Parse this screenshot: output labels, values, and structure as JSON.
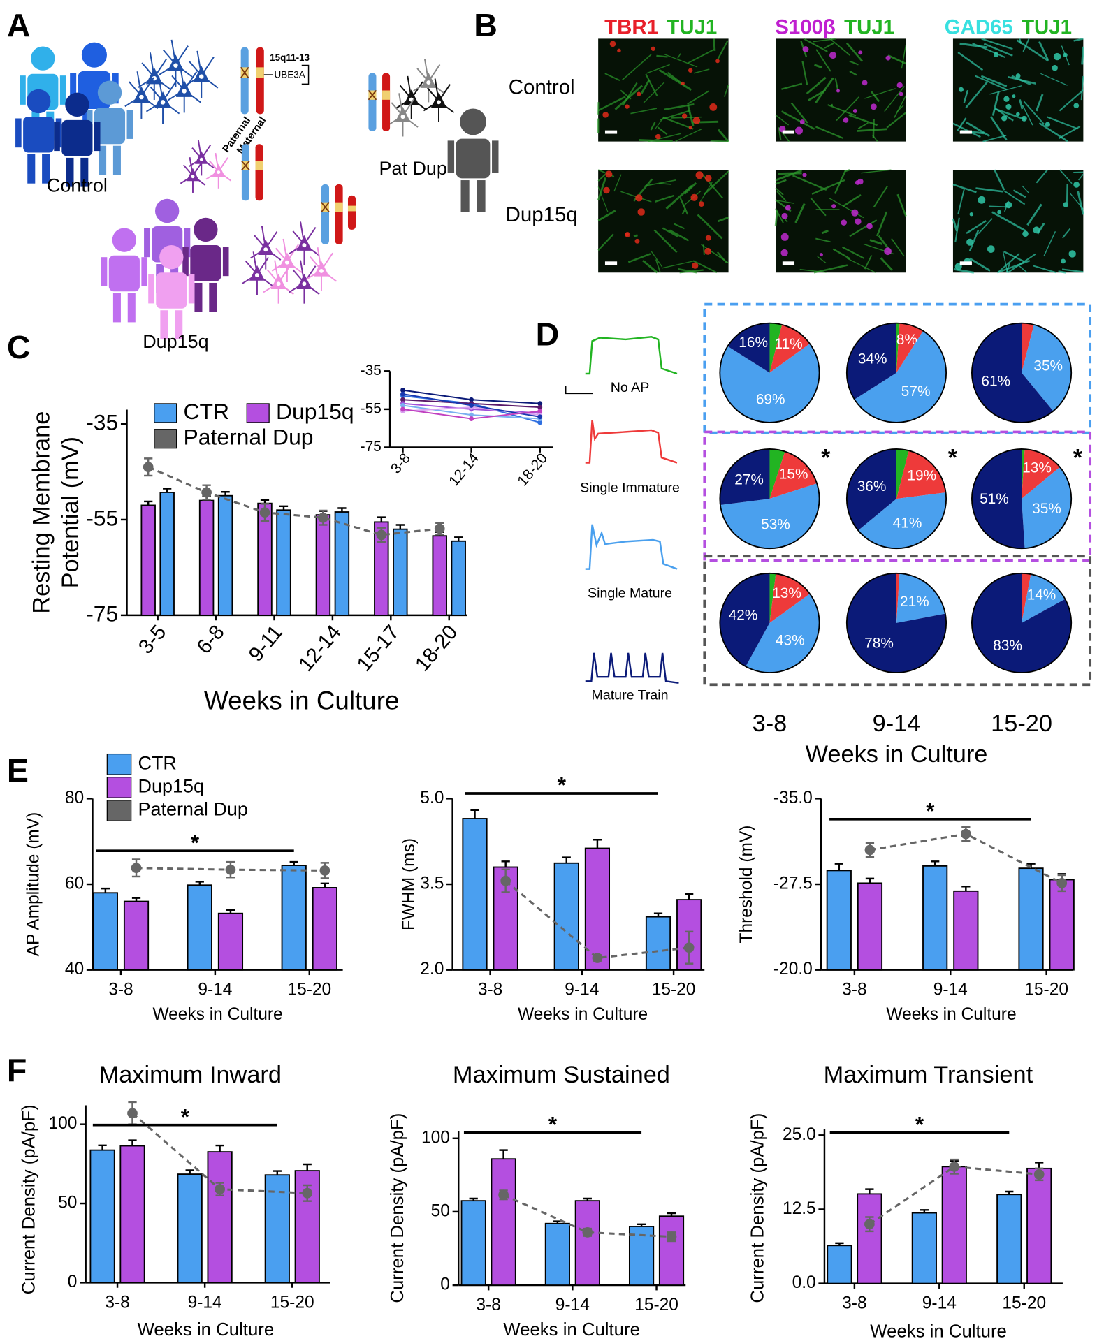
{
  "panel_labels": [
    "A",
    "B",
    "C",
    "D",
    "E",
    "F"
  ],
  "panel_a": {
    "groups": [
      "Control",
      "Pat Dup",
      "Dup15q"
    ],
    "chromosome": {
      "region": "15q11-13",
      "gene": "UBE3A",
      "alleles": [
        "Paternal",
        "Maternal"
      ]
    }
  },
  "panel_b": {
    "stains": [
      [
        "TBR1",
        "TUJ1"
      ],
      [
        "S100β",
        "TUJ1"
      ],
      [
        "GAD65",
        "TUJ1"
      ]
    ],
    "stain_colors": [
      [
        "#e8202a",
        "#22b422"
      ],
      [
        "#c020d0",
        "#22b422"
      ],
      [
        "#38e0e0",
        "#22b422"
      ]
    ],
    "rows": [
      "Control",
      "Dup15q"
    ]
  },
  "chart_data": [
    {
      "type": "bar",
      "ylabel": [
        "Resting Membrane",
        "Potential (mV)"
      ],
      "xlabel": "Weeks in Culture",
      "categories": [
        "3-5",
        "6-8",
        "9-11",
        "12-14",
        "15-17",
        "18-20"
      ],
      "series": [
        {
          "name": "CTR",
          "color": "#4a9ff0",
          "values": [
            -49.3,
            -50,
            -53,
            -53.4,
            -57,
            -59.5
          ],
          "errors": [
            0.8,
            0.8,
            0.8,
            0.8,
            0.9,
            0.8
          ]
        },
        {
          "name": "Dup15q",
          "color": "#b44fe0",
          "values": [
            -52,
            -51,
            -51.6,
            -54,
            -55.5,
            -58.4
          ],
          "errors": [
            0.8,
            0.9,
            0.7,
            0.8,
            1,
            0.8
          ]
        },
        {
          "name": "Paternal Dup",
          "color": "#666666",
          "style": "line",
          "values": [
            -44,
            -49.3,
            -53.5,
            -54.6,
            -58.2,
            -56.9
          ],
          "errors": [
            1.8,
            1.5,
            1.8,
            1.5,
            1.5,
            1.2
          ]
        }
      ],
      "bar_order": [
        1,
        0
      ],
      "ylim": [
        -75,
        -32
      ],
      "yticks": [
        -75,
        -55,
        -35
      ],
      "legend": true
    },
    {
      "type": "line",
      "categories": [
        "3-8",
        "12-14",
        "18-20"
      ],
      "ylim": [
        -75,
        -35
      ],
      "yticks": [
        -75,
        -55,
        -35
      ],
      "series": [
        {
          "color": "#0b1a78",
          "values": [
            -45,
            -50,
            -52
          ]
        },
        {
          "color": "#2f6fe0",
          "values": [
            -48,
            -52,
            -62
          ]
        },
        {
          "color": "#5a1a6a",
          "values": [
            -50,
            -52,
            -54
          ]
        },
        {
          "color": "#a050d8",
          "values": [
            -52,
            -55,
            -57
          ]
        },
        {
          "color": "#7ab0f0",
          "values": [
            -53,
            -58,
            -60
          ]
        },
        {
          "color": "#d8a0f0",
          "values": [
            -56,
            -54,
            -58
          ]
        },
        {
          "color": "#1838b0",
          "values": [
            -47,
            -53,
            -59
          ]
        },
        {
          "color": "#c040c0",
          "values": [
            -55,
            -60,
            -56
          ]
        }
      ]
    },
    {
      "type": "pie",
      "categories": [
        "No AP",
        "Single Immature",
        "Single Mature",
        "Mature Train"
      ],
      "colors": [
        "#22b422",
        "#ee3a3a",
        "#4aa0ee",
        "#0b1a78"
      ],
      "columns": [
        "3-8",
        "9-14",
        "15-20"
      ],
      "row_colors": [
        "#4a9ff0",
        "#b44fe0",
        "#555555"
      ],
      "xlabel": "Weeks in Culture",
      "pies": [
        {
          "values": [
            4,
            11,
            69,
            16
          ],
          "value_labels": [
            null,
            "11%",
            "69%",
            "16%"
          ]
        },
        {
          "values": [
            1,
            8,
            57,
            34
          ],
          "value_labels": [
            null,
            "8%",
            "57%",
            "34%"
          ]
        },
        {
          "values": [
            0,
            4,
            35,
            61
          ],
          "value_labels": [
            null,
            null,
            "35%",
            "61%"
          ]
        },
        {
          "values": [
            5,
            15,
            53,
            27
          ],
          "value_labels": [
            null,
            "15%",
            "53%",
            "27%"
          ],
          "note": "*"
        },
        {
          "values": [
            4,
            19,
            41,
            36
          ],
          "value_labels": [
            null,
            "19%",
            "41%",
            "36%"
          ],
          "note": "*"
        },
        {
          "values": [
            1,
            13,
            35,
            51
          ],
          "value_labels": [
            null,
            "13%",
            "35%",
            "51%"
          ],
          "note": "*"
        },
        {
          "values": [
            2,
            13,
            43,
            42
          ],
          "value_labels": [
            null,
            "13%",
            "43%",
            "42%"
          ]
        },
        {
          "values": [
            0,
            1,
            21,
            78
          ],
          "value_labels": [
            null,
            null,
            "21%",
            "78%"
          ]
        },
        {
          "values": [
            0,
            3,
            14,
            83
          ],
          "value_labels": [
            null,
            null,
            "14%",
            "83%"
          ]
        }
      ]
    },
    {
      "type": "bar",
      "ylabel": "AP Amplitude (mV)",
      "xlabel": "Weeks in Culture",
      "categories": [
        "3-8",
        "9-14",
        "15-20"
      ],
      "ylim": [
        40,
        80
      ],
      "yticks": [
        40,
        60,
        80
      ],
      "legend": true,
      "series": [
        {
          "name": "CTR",
          "color": "#4a9ff0",
          "values": [
            58,
            59.8,
            64.4
          ],
          "errors": [
            1,
            0.8,
            0.8
          ]
        },
        {
          "name": "Dup15q",
          "color": "#b44fe0",
          "values": [
            56,
            53.2,
            59.2
          ],
          "errors": [
            0.8,
            0.8,
            1
          ]
        },
        {
          "name": "Paternal Dup",
          "color": "#666666",
          "style": "line",
          "values": [
            63.8,
            63.4,
            63.2
          ],
          "errors": [
            2,
            1.8,
            1.8
          ]
        }
      ],
      "significance": {
        "text": "*",
        "from": 0,
        "to": 2
      }
    },
    {
      "type": "bar",
      "ylabel": "FWHM (ms)",
      "xlabel": "Weeks in Culture",
      "categories": [
        "3-8",
        "9-14",
        "15-20"
      ],
      "ylim": [
        2,
        5
      ],
      "yticks": [
        {
          "value": 2,
          "label": "2.0"
        },
        3.5,
        {
          "value": 5,
          "label": "5.0"
        }
      ],
      "series": [
        {
          "name": "CTR",
          "color": "#4a9ff0",
          "values": [
            4.65,
            3.87,
            2.93
          ],
          "errors": [
            0.15,
            0.1,
            0.06
          ]
        },
        {
          "name": "Dup15q",
          "color": "#b44fe0",
          "values": [
            3.8,
            4.13,
            3.23
          ],
          "errors": [
            0.1,
            0.15,
            0.1
          ]
        },
        {
          "name": "Paternal Dup",
          "color": "#666666",
          "style": "line",
          "values": [
            3.56,
            2.21,
            2.39
          ],
          "errors": [
            0.2,
            0.05,
            0.28
          ]
        }
      ],
      "significance": {
        "text": "*",
        "from": 0,
        "to": 2
      }
    },
    {
      "type": "bar",
      "ylabel": "Threshold (mV)",
      "xlabel": "Weeks in Culture",
      "categories": [
        "3-8",
        "9-14",
        "15-20"
      ],
      "ylim": [
        -20,
        -35
      ],
      "yticks": [
        {
          "value": -35,
          "label": "-35.0"
        },
        -27.5,
        {
          "value": -20,
          "label": "-20.0"
        }
      ],
      "series": [
        {
          "name": "CTR",
          "color": "#4a9ff0",
          "values": [
            -28.7,
            -29.1,
            -28.9
          ],
          "errors": [
            0.6,
            0.4,
            0.4
          ]
        },
        {
          "name": "Dup15q",
          "color": "#b44fe0",
          "values": [
            -27.6,
            -26.9,
            -27.9
          ],
          "errors": [
            0.4,
            0.4,
            0.5
          ]
        },
        {
          "name": "Paternal Dup",
          "color": "#666666",
          "style": "line",
          "values": [
            -30.5,
            -31.9,
            -27.6
          ],
          "errors": [
            0.6,
            0.6,
            0.7
          ]
        }
      ],
      "significance": {
        "text": "*",
        "from": 0,
        "to": 2
      }
    },
    {
      "type": "bar",
      "title": "Maximum Inward",
      "ylabel": "Current Density (pA/pF)",
      "xlabel": "Weeks in Culture",
      "categories": [
        "3-8",
        "9-14",
        "15-20"
      ],
      "ylim": [
        0,
        112
      ],
      "yticks": [
        0,
        50,
        100
      ],
      "series": [
        {
          "name": "CTR",
          "color": "#4a9ff0",
          "values": [
            83.7,
            68.5,
            68
          ],
          "errors": [
            3,
            2.5,
            2.5
          ]
        },
        {
          "name": "Dup15q",
          "color": "#b44fe0",
          "values": [
            86.4,
            82.6,
            70.7
          ],
          "errors": [
            3.5,
            4,
            4
          ]
        },
        {
          "name": "Paternal Dup",
          "color": "#666666",
          "style": "line",
          "values": [
            107,
            59,
            56.5
          ],
          "errors": [
            7,
            4,
            5
          ]
        }
      ],
      "significance": {
        "text": "*",
        "from": 0,
        "to": 2
      }
    },
    {
      "type": "bar",
      "title": "Maximum  Sustained",
      "ylabel": "Current Density (pA/pF)",
      "xlabel": "Weeks in Culture",
      "categories": [
        "3-8",
        "9-14",
        "15-20"
      ],
      "ylim": [
        0,
        105
      ],
      "yticks": [
        0,
        50,
        100
      ],
      "series": [
        {
          "name": "CTR",
          "color": "#4a9ff0",
          "values": [
            57.5,
            42,
            40
          ],
          "errors": [
            1.5,
            1.5,
            1.5
          ]
        },
        {
          "name": "Dup15q",
          "color": "#b44fe0",
          "values": [
            86,
            57.5,
            47
          ],
          "errors": [
            6,
            1.5,
            2
          ]
        },
        {
          "name": "Paternal Dup",
          "color": "#666666",
          "style": "line",
          "values": [
            61.5,
            36,
            33
          ],
          "errors": [
            3,
            2.5,
            3
          ]
        }
      ],
      "significance": {
        "text": "*",
        "from": 0,
        "to": 2
      }
    },
    {
      "type": "bar",
      "title": "Maximum Transient",
      "ylabel": "Current Density (pA/pF)",
      "xlabel": "Weeks in Culture",
      "categories": [
        "3-8",
        "9-14",
        "15-20"
      ],
      "ylim": [
        0,
        26
      ],
      "yticks": [
        {
          "value": 0,
          "label": "0.0"
        },
        12.5,
        {
          "value": 25,
          "label": "25.0"
        }
      ],
      "series": [
        {
          "name": "CTR",
          "color": "#4a9ff0",
          "values": [
            6.4,
            11.9,
            15
          ],
          "errors": [
            0.4,
            0.5,
            0.5
          ]
        },
        {
          "name": "Dup15q",
          "color": "#b44fe0",
          "values": [
            15.1,
            19.7,
            19.4
          ],
          "errors": [
            0.8,
            1,
            1
          ]
        },
        {
          "name": "Paternal Dup",
          "color": "#666666",
          "style": "line",
          "values": [
            10,
            19.7,
            18.4
          ],
          "errors": [
            1.2,
            1.2,
            1
          ]
        }
      ],
      "significance": {
        "text": "*",
        "from": 0,
        "to": 2
      }
    }
  ]
}
